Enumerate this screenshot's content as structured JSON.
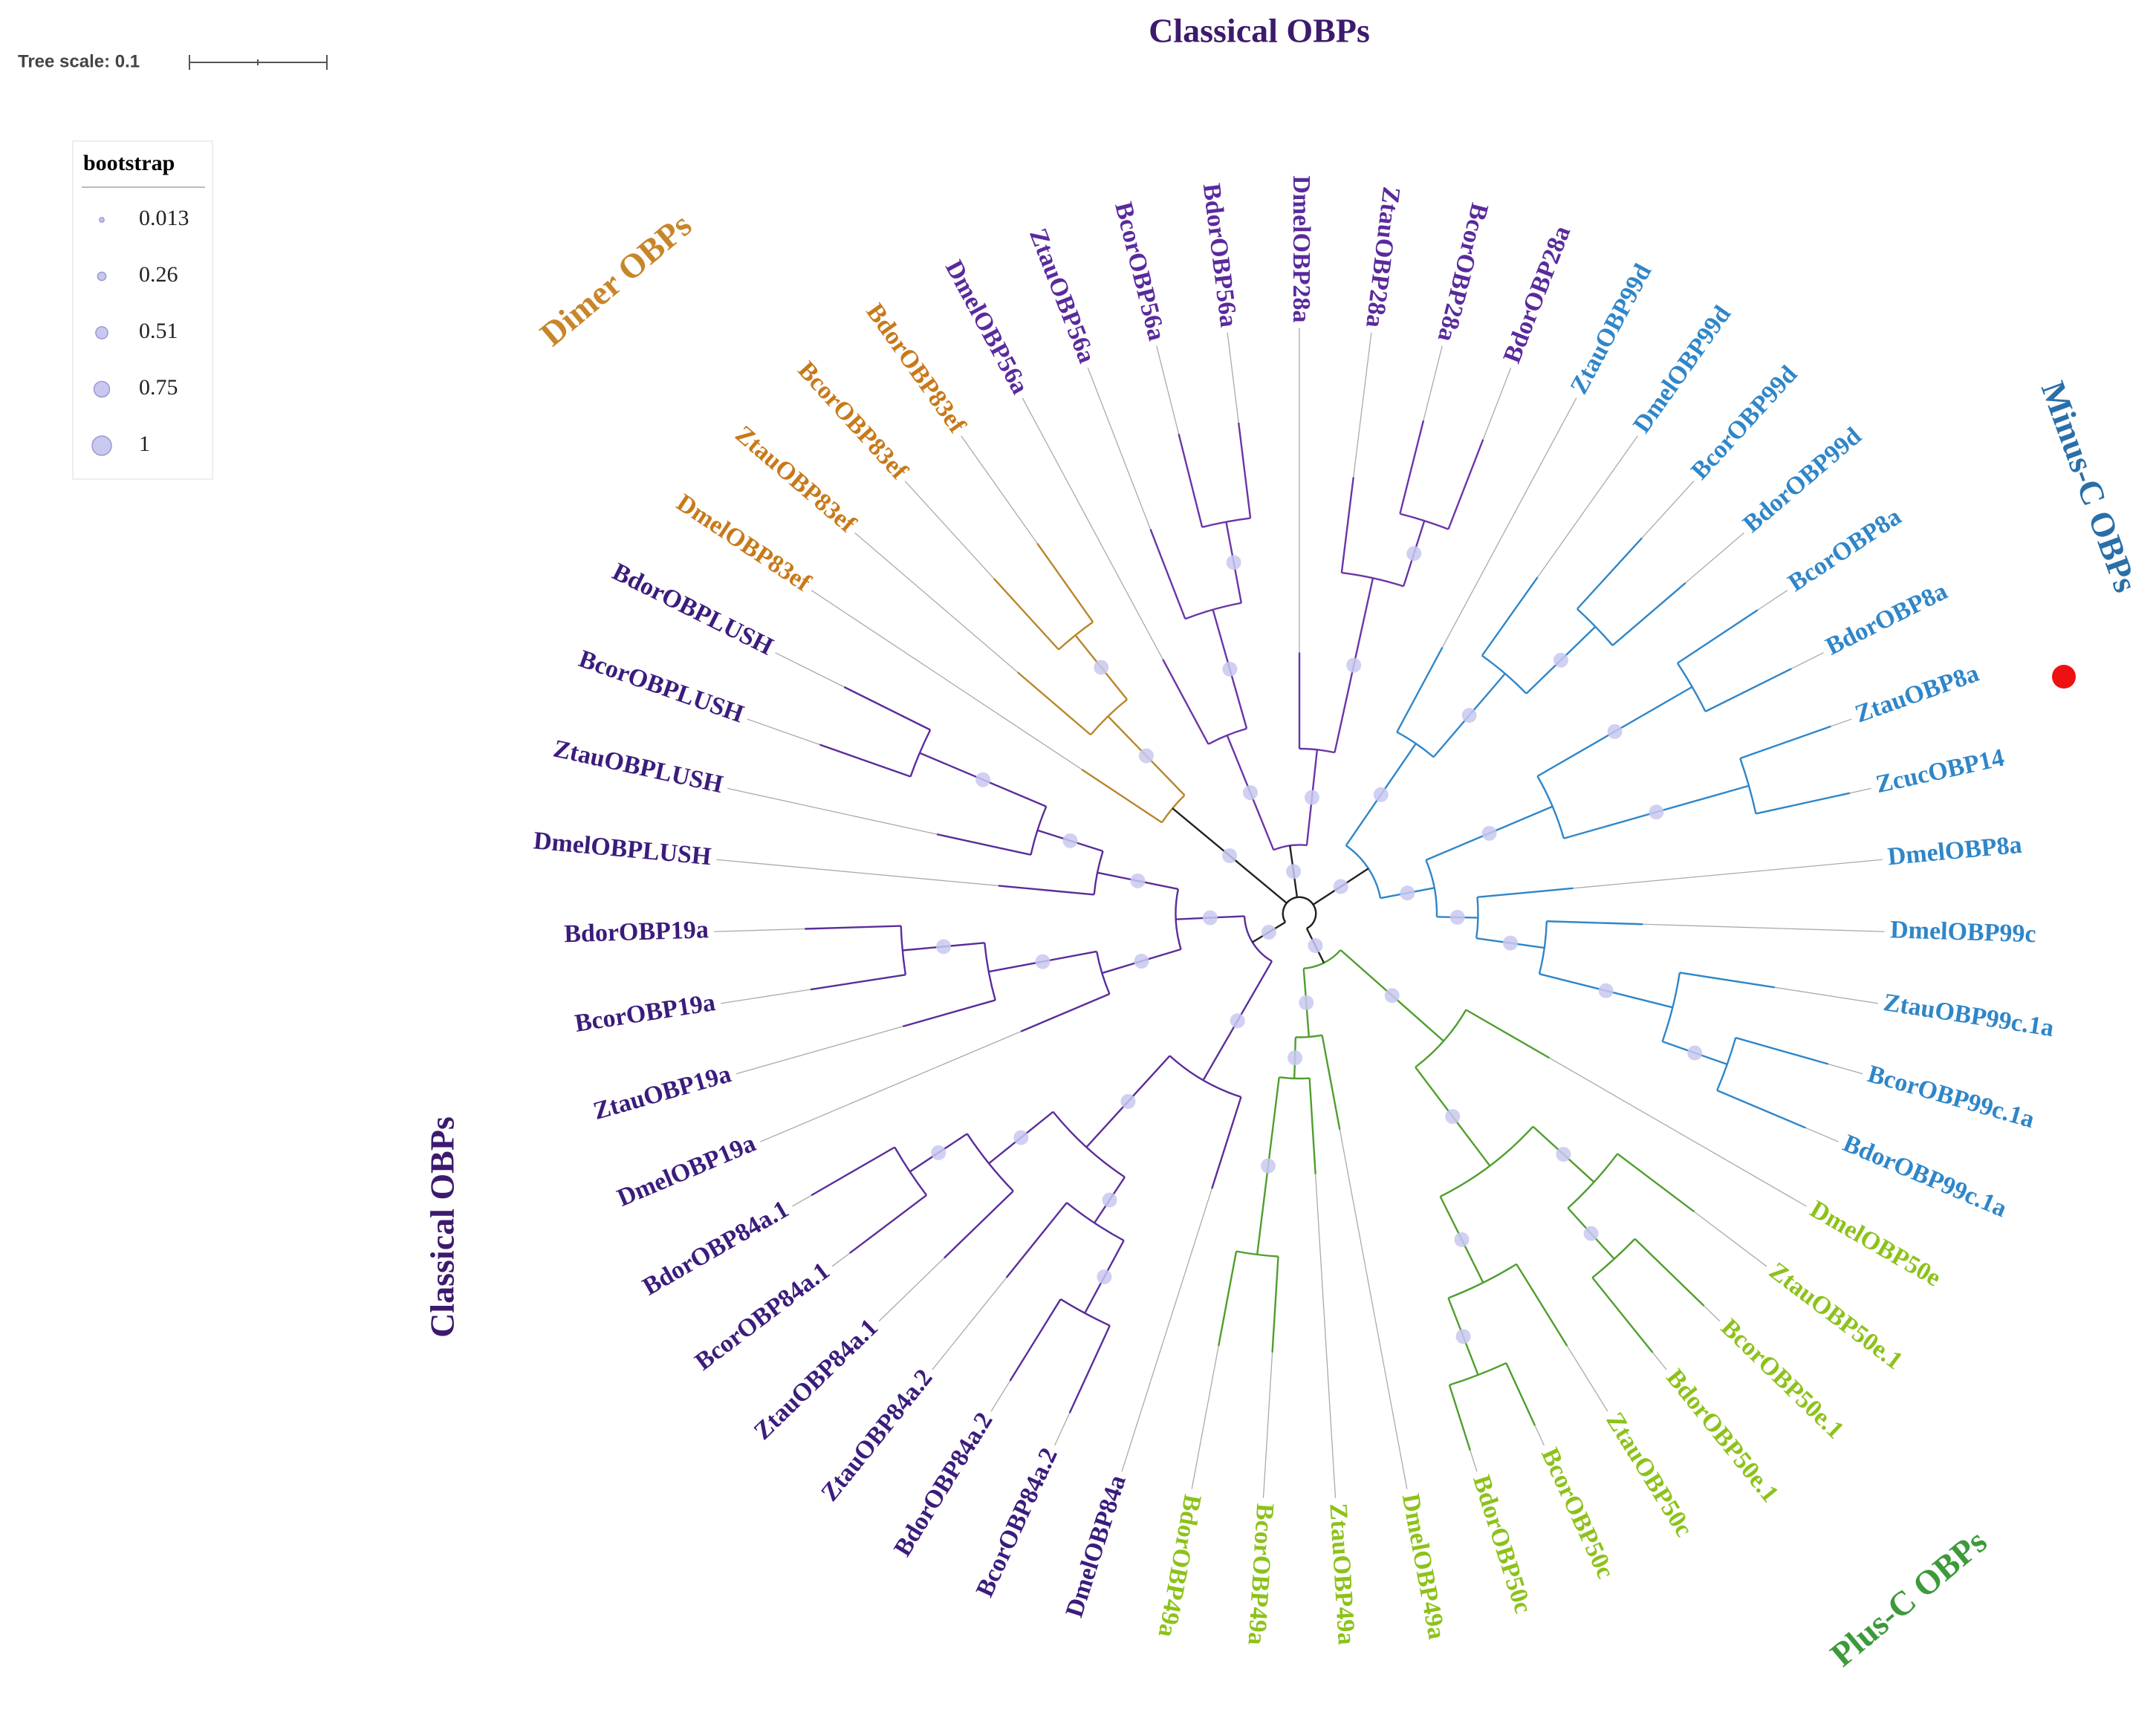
{
  "tree_scale": {
    "label": "Tree scale: 0.1"
  },
  "legend": {
    "title": "bootstrap",
    "items": [
      0.013,
      0.26,
      0.51,
      0.75,
      1
    ]
  },
  "groups": [
    "Classical OBPs",
    "Minus-C OBPs",
    "Plus-C OBPs",
    "Dimer OBPs",
    "Classical OBPs"
  ],
  "leaves": [
    "DmelOBP28a",
    "ZtauOBP28a",
    "BcorOBP28a",
    "BdorOBP28a",
    "ZtauOBP99d",
    "DmelOBP99d",
    "BcorOBP99d",
    "BdorOBP99d",
    "BcorOBP8a",
    "BdorOBP8a",
    "ZtauOBP8a",
    "ZcucOBP14",
    "DmelOBP8a",
    "DmelOBP99c",
    "ZtauOBP99c.1a",
    "BcorOBP99c.1a",
    "BdorOBP99c.1a",
    "DmelOBP50e",
    "ZtauOBP50e.1",
    "BcorOBP50e.1",
    "BdorOBP50e.1",
    "ZtauOBP50c",
    "BcorOBP50c",
    "BdorOBP50c",
    "DmelOBP49a",
    "ZtauOBP49a",
    "BcorOBP49a",
    "BdorOBP49a",
    "DmelOBP84a",
    "BcorOBP84a.2",
    "BdorOBP84a.2",
    "ZtauOBP84a.2",
    "ZtauOBP84a.1",
    "BcorOBP84a.1",
    "BdorOBP84a.1",
    "DmelOBP19a",
    "ZtauOBP19a",
    "BcorOBP19a",
    "BdorOBP19a",
    "DmelOBPLUSH",
    "ZtauOBPLUSH",
    "BcorOBPLUSH",
    "BdorOBPLUSH",
    "DmelOBP83ef",
    "ZtauOBP83ef",
    "BcorOBP83ef",
    "BdorOBP83ef",
    "DmelOBP56a",
    "ZtauOBP56a",
    "BcorOBP56a",
    "BdorOBP56a"
  ]
}
